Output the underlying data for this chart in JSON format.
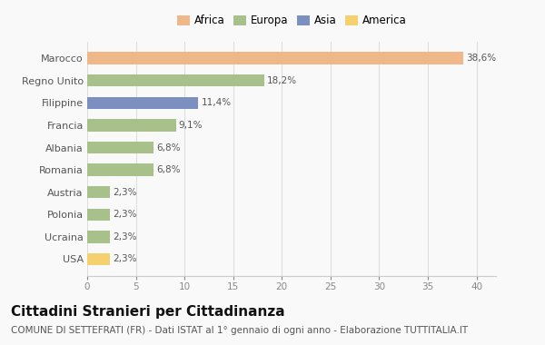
{
  "categories": [
    "USA",
    "Ucraina",
    "Polonia",
    "Austria",
    "Romania",
    "Albania",
    "Francia",
    "Filippine",
    "Regno Unito",
    "Marocco"
  ],
  "values": [
    2.3,
    2.3,
    2.3,
    2.3,
    6.8,
    6.8,
    9.1,
    11.4,
    18.2,
    38.6
  ],
  "labels": [
    "2,3%",
    "2,3%",
    "2,3%",
    "2,3%",
    "6,8%",
    "6,8%",
    "9,1%",
    "11,4%",
    "18,2%",
    "38,6%"
  ],
  "colors": [
    "#F5D06E",
    "#A8C08A",
    "#A8C08A",
    "#A8C08A",
    "#A8C08A",
    "#A8C08A",
    "#A8C08A",
    "#7B8FC0",
    "#A8C08A",
    "#F0B888"
  ],
  "legend_labels": [
    "Africa",
    "Europa",
    "Asia",
    "America"
  ],
  "legend_colors": [
    "#F0B888",
    "#A8C08A",
    "#7B8FC0",
    "#F5D06E"
  ],
  "title": "Cittadini Stranieri per Cittadinanza",
  "subtitle": "COMUNE DI SETTEFRATI (FR) - Dati ISTAT al 1° gennaio di ogni anno - Elaborazione TUTTITALIA.IT",
  "xlim": [
    0,
    42
  ],
  "xticks": [
    0,
    5,
    10,
    15,
    20,
    25,
    30,
    35,
    40
  ],
  "background_color": "#f9f9f9",
  "bar_height": 0.55,
  "title_fontsize": 11,
  "subtitle_fontsize": 7.5,
  "label_fontsize": 7.5,
  "tick_fontsize": 7.5,
  "legend_fontsize": 8.5,
  "ylabel_fontsize": 8
}
